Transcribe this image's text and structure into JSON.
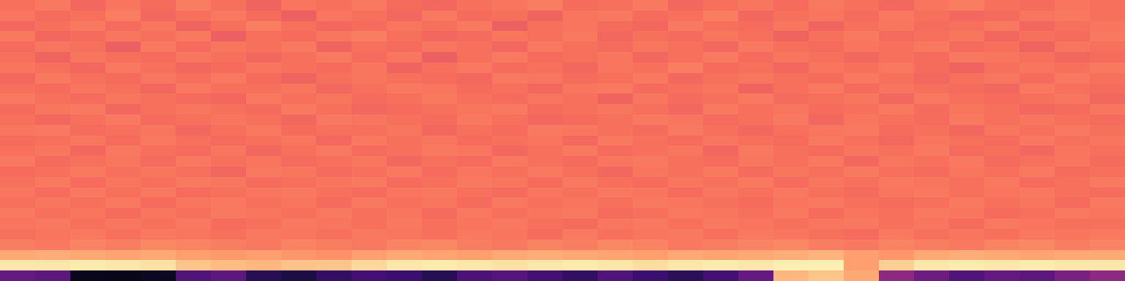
{
  "chart_data": {
    "type": "heatmap",
    "color": "magma",
    "tick_labels": false,
    "color_range": [
      0,
      1
    ],
    "cells": [
      [
        0.7,
        0.72,
        0.68,
        0.71,
        0.69,
        0.73,
        0.7,
        0.67,
        0.71,
        0.7,
        0.72,
        0.69,
        0.68,
        0.7,
        0.71,
        0.73,
        0.69,
        0.7,
        0.72,
        0.68,
        0.7,
        0.71,
        0.69,
        0.72,
        0.7,
        0.68,
        0.71,
        0.73,
        0.7,
        0.69,
        0.71,
        0.7
      ],
      [
        0.71,
        0.69,
        0.7,
        0.73,
        0.68,
        0.7,
        0.72,
        0.69,
        0.66,
        0.71,
        0.7,
        0.68,
        0.72,
        0.69,
        0.7,
        0.67,
        0.71,
        0.72,
        0.69,
        0.7,
        0.73,
        0.68,
        0.7,
        0.71,
        0.69,
        0.72,
        0.7,
        0.68,
        0.69,
        0.71,
        0.72,
        0.7
      ],
      [
        0.68,
        0.7,
        0.72,
        0.69,
        0.71,
        0.67,
        0.7,
        0.73,
        0.7,
        0.68,
        0.69,
        0.71,
        0.7,
        0.72,
        0.66,
        0.7,
        0.71,
        0.69,
        0.68,
        0.72,
        0.7,
        0.69,
        0.71,
        0.67,
        0.7,
        0.71,
        0.69,
        0.7,
        0.72,
        0.68,
        0.7,
        0.71
      ],
      [
        0.72,
        0.68,
        0.69,
        0.71,
        0.7,
        0.72,
        0.66,
        0.7,
        0.69,
        0.71,
        0.73,
        0.7,
        0.68,
        0.69,
        0.71,
        0.7,
        0.72,
        0.68,
        0.7,
        0.69,
        0.71,
        0.7,
        0.67,
        0.7,
        0.72,
        0.69,
        0.7,
        0.71,
        0.68,
        0.7,
        0.69,
        0.72
      ],
      [
        0.69,
        0.71,
        0.7,
        0.66,
        0.72,
        0.69,
        0.71,
        0.7,
        0.72,
        0.67,
        0.7,
        0.69,
        0.71,
        0.7,
        0.68,
        0.72,
        0.7,
        0.69,
        0.71,
        0.7,
        0.68,
        0.72,
        0.7,
        0.69,
        0.71,
        0.7,
        0.72,
        0.69,
        0.7,
        0.67,
        0.71,
        0.7
      ],
      [
        0.7,
        0.67,
        0.71,
        0.7,
        0.69,
        0.71,
        0.7,
        0.68,
        0.7,
        0.72,
        0.69,
        0.71,
        0.66,
        0.7,
        0.72,
        0.69,
        0.7,
        0.71,
        0.68,
        0.7,
        0.72,
        0.69,
        0.71,
        0.7,
        0.68,
        0.7,
        0.69,
        0.72,
        0.71,
        0.7,
        0.68,
        0.69
      ],
      [
        0.71,
        0.7,
        0.68,
        0.72,
        0.7,
        0.68,
        0.69,
        0.71,
        0.7,
        0.69,
        0.71,
        0.67,
        0.7,
        0.72,
        0.69,
        0.7,
        0.68,
        0.71,
        0.7,
        0.73,
        0.69,
        0.7,
        0.68,
        0.71,
        0.7,
        0.72,
        0.69,
        0.67,
        0.7,
        0.71,
        0.7,
        0.72
      ],
      [
        0.68,
        0.72,
        0.7,
        0.69,
        0.71,
        0.7,
        0.72,
        0.69,
        0.67,
        0.7,
        0.71,
        0.7,
        0.69,
        0.68,
        0.72,
        0.71,
        0.69,
        0.7,
        0.72,
        0.68,
        0.7,
        0.71,
        0.7,
        0.69,
        0.72,
        0.7,
        0.68,
        0.7,
        0.71,
        0.69,
        0.72,
        0.7
      ],
      [
        0.7,
        0.69,
        0.71,
        0.7,
        0.68,
        0.72,
        0.7,
        0.7,
        0.71,
        0.68,
        0.7,
        0.72,
        0.71,
        0.69,
        0.7,
        0.68,
        0.71,
        0.72,
        0.69,
        0.7,
        0.71,
        0.67,
        0.7,
        0.72,
        0.69,
        0.71,
        0.7,
        0.69,
        0.68,
        0.72,
        0.7,
        0.69
      ],
      [
        0.72,
        0.7,
        0.69,
        0.71,
        0.7,
        0.69,
        0.68,
        0.72,
        0.7,
        0.71,
        0.69,
        0.7,
        0.72,
        0.7,
        0.69,
        0.71,
        0.7,
        0.67,
        0.71,
        0.69,
        0.7,
        0.72,
        0.69,
        0.7,
        0.71,
        0.68,
        0.72,
        0.7,
        0.69,
        0.7,
        0.71,
        0.68
      ],
      [
        0.69,
        0.71,
        0.72,
        0.68,
        0.7,
        0.71,
        0.7,
        0.69,
        0.72,
        0.7,
        0.68,
        0.69,
        0.7,
        0.71,
        0.72,
        0.69,
        0.7,
        0.71,
        0.7,
        0.68,
        0.72,
        0.7,
        0.71,
        0.69,
        0.7,
        0.72,
        0.69,
        0.71,
        0.7,
        0.68,
        0.69,
        0.71
      ],
      [
        0.7,
        0.68,
        0.7,
        0.72,
        0.69,
        0.7,
        0.71,
        0.7,
        0.68,
        0.72,
        0.71,
        0.7,
        0.69,
        0.72,
        0.7,
        0.68,
        0.69,
        0.7,
        0.72,
        0.71,
        0.69,
        0.7,
        0.72,
        0.68,
        0.71,
        0.7,
        0.69,
        0.72,
        0.7,
        0.71,
        0.7,
        0.69
      ],
      [
        0.71,
        0.72,
        0.69,
        0.7,
        0.71,
        0.68,
        0.7,
        0.72,
        0.69,
        0.7,
        0.7,
        0.71,
        0.68,
        0.7,
        0.69,
        0.72,
        0.71,
        0.7,
        0.69,
        0.72,
        0.7,
        0.68,
        0.7,
        0.71,
        0.72,
        0.69,
        0.7,
        0.68,
        0.71,
        0.7,
        0.72,
        0.7
      ],
      [
        0.69,
        0.7,
        0.71,
        0.69,
        0.72,
        0.7,
        0.69,
        0.7,
        0.71,
        0.68,
        0.72,
        0.7,
        0.71,
        0.69,
        0.7,
        0.71,
        0.68,
        0.72,
        0.7,
        0.69,
        0.71,
        0.7,
        0.69,
        0.72,
        0.7,
        0.68,
        0.71,
        0.7,
        0.69,
        0.72,
        0.7,
        0.71
      ],
      [
        0.7,
        0.71,
        0.68,
        0.72,
        0.7,
        0.69,
        0.71,
        0.68,
        0.7,
        0.72,
        0.69,
        0.7,
        0.72,
        0.71,
        0.68,
        0.7,
        0.72,
        0.69,
        0.7,
        0.71,
        0.68,
        0.72,
        0.7,
        0.69,
        0.71,
        0.7,
        0.72,
        0.69,
        0.7,
        0.68,
        0.71,
        0.7
      ],
      [
        0.72,
        0.69,
        0.7,
        0.71,
        0.69,
        0.72,
        0.7,
        0.71,
        0.69,
        0.7,
        0.71,
        0.68,
        0.7,
        0.69,
        0.72,
        0.7,
        0.69,
        0.71,
        0.72,
        0.7,
        0.69,
        0.71,
        0.7,
        0.72,
        0.68,
        0.71,
        0.7,
        0.72,
        0.69,
        0.7,
        0.71,
        0.69
      ],
      [
        0.69,
        0.7,
        0.72,
        0.7,
        0.71,
        0.7,
        0.68,
        0.72,
        0.71,
        0.69,
        0.7,
        0.72,
        0.69,
        0.71,
        0.7,
        0.72,
        0.7,
        0.68,
        0.71,
        0.7,
        0.72,
        0.69,
        0.71,
        0.7,
        0.72,
        0.7,
        0.69,
        0.71,
        0.7,
        0.72,
        0.69,
        0.7
      ],
      [
        0.7,
        0.72,
        0.69,
        0.71,
        0.7,
        0.72,
        0.71,
        0.69,
        0.7,
        0.71,
        0.72,
        0.69,
        0.7,
        0.72,
        0.71,
        0.69,
        0.72,
        0.7,
        0.69,
        0.71,
        0.7,
        0.72,
        0.69,
        0.71,
        0.7,
        0.72,
        0.71,
        0.7,
        0.72,
        0.69,
        0.7,
        0.72
      ],
      [
        0.71,
        0.69,
        0.72,
        0.7,
        0.72,
        0.69,
        0.7,
        0.71,
        0.72,
        0.7,
        0.69,
        0.71,
        0.72,
        0.7,
        0.69,
        0.71,
        0.7,
        0.72,
        0.71,
        0.69,
        0.71,
        0.7,
        0.72,
        0.7,
        0.69,
        0.71,
        0.72,
        0.7,
        0.71,
        0.72,
        0.7,
        0.69
      ],
      [
        0.7,
        0.71,
        0.7,
        0.72,
        0.69,
        0.71,
        0.72,
        0.7,
        0.71,
        0.69,
        0.72,
        0.7,
        0.71,
        0.69,
        0.72,
        0.7,
        0.71,
        0.7,
        0.72,
        0.71,
        0.7,
        0.69,
        0.71,
        0.72,
        0.7,
        0.69,
        0.7,
        0.72,
        0.7,
        0.71,
        0.69,
        0.72
      ],
      [
        0.72,
        0.7,
        0.71,
        0.69,
        0.71,
        0.7,
        0.72,
        0.71,
        0.7,
        0.72,
        0.7,
        0.71,
        0.69,
        0.72,
        0.7,
        0.71,
        0.72,
        0.69,
        0.7,
        0.72,
        0.71,
        0.7,
        0.72,
        0.69,
        0.71,
        0.7,
        0.72,
        0.71,
        0.69,
        0.7,
        0.72,
        0.71
      ],
      [
        0.71,
        0.72,
        0.7,
        0.71,
        0.7,
        0.72,
        0.69,
        0.7,
        0.72,
        0.71,
        0.7,
        0.72,
        0.7,
        0.71,
        0.72,
        0.7,
        0.69,
        0.71,
        0.72,
        0.7,
        0.72,
        0.71,
        0.7,
        0.71,
        0.72,
        0.7,
        0.71,
        0.69,
        0.72,
        0.71,
        0.7,
        0.7
      ],
      [
        0.7,
        0.71,
        0.72,
        0.7,
        0.72,
        0.71,
        0.7,
        0.72,
        0.71,
        0.7,
        0.72,
        0.71,
        0.7,
        0.72,
        0.71,
        0.69,
        0.72,
        0.7,
        0.71,
        0.72,
        0.7,
        0.72,
        0.71,
        0.7,
        0.69,
        0.72,
        0.7,
        0.71,
        0.7,
        0.72,
        0.71,
        0.72
      ],
      [
        0.73,
        0.72,
        0.74,
        0.73,
        0.75,
        0.74,
        0.73,
        0.72,
        0.74,
        0.73,
        0.72,
        0.74,
        0.75,
        0.73,
        0.72,
        0.74,
        0.73,
        0.75,
        0.74,
        0.72,
        0.73,
        0.74,
        0.75,
        0.73,
        0.72,
        0.74,
        0.73,
        0.72,
        0.74,
        0.75,
        0.73,
        0.74
      ],
      [
        0.82,
        0.83,
        0.82,
        0.81,
        0.82,
        0.8,
        0.79,
        0.8,
        0.78,
        0.77,
        0.8,
        0.82,
        0.81,
        0.8,
        0.82,
        0.83,
        0.82,
        0.81,
        0.8,
        0.82,
        0.81,
        0.82,
        0.83,
        0.84,
        0.8,
        0.78,
        0.82,
        0.83,
        0.82,
        0.81,
        0.82,
        0.82
      ],
      [
        0.95,
        0.95,
        0.96,
        0.95,
        0.94,
        0.88,
        0.86,
        0.85,
        0.87,
        0.88,
        0.92,
        0.95,
        0.96,
        0.95,
        0.94,
        0.95,
        0.96,
        0.95,
        0.93,
        0.95,
        0.96,
        0.95,
        0.97,
        0.97,
        0.8,
        0.9,
        0.95,
        0.96,
        0.95,
        0.96,
        0.95,
        0.95
      ],
      [
        0.3,
        0.28,
        0.05,
        0.04,
        0.06,
        0.25,
        0.28,
        0.15,
        0.12,
        0.18,
        0.22,
        0.2,
        0.15,
        0.24,
        0.26,
        0.22,
        0.18,
        0.25,
        0.2,
        0.16,
        0.22,
        0.3,
        0.85,
        0.88,
        0.82,
        0.4,
        0.32,
        0.25,
        0.3,
        0.28,
        0.35,
        0.4
      ]
    ]
  }
}
